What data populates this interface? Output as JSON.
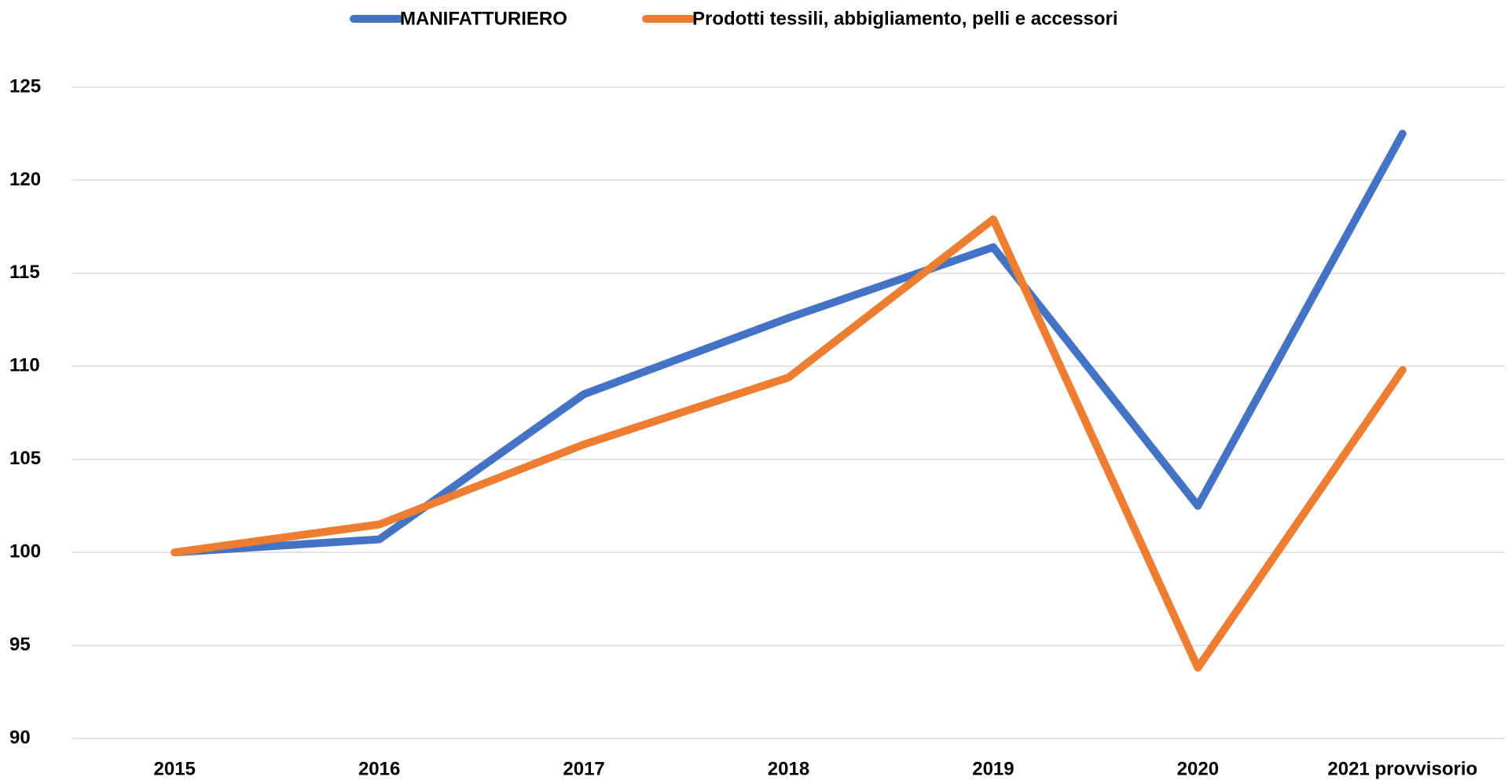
{
  "chart_data": {
    "type": "line",
    "categories": [
      "2015",
      "2016",
      "2017",
      "2018",
      "2019",
      "2020",
      "2021 provvisorio"
    ],
    "series": [
      {
        "name": "MANIFATTURIERO",
        "color": "#4472c4",
        "values": [
          100,
          100.7,
          108.5,
          112.6,
          116.4,
          102.5,
          122.5
        ]
      },
      {
        "name": "Prodotti tessili, abbigliamento, pelli e accessori",
        "color": "#ed7d31",
        "values": [
          100,
          101.5,
          105.8,
          109.4,
          117.9,
          93.8,
          109.8
        ]
      }
    ],
    "ylim": [
      90,
      125
    ],
    "yticks": [
      90,
      95,
      100,
      105,
      110,
      115,
      120,
      125
    ],
    "grid": true,
    "legend": "top"
  }
}
